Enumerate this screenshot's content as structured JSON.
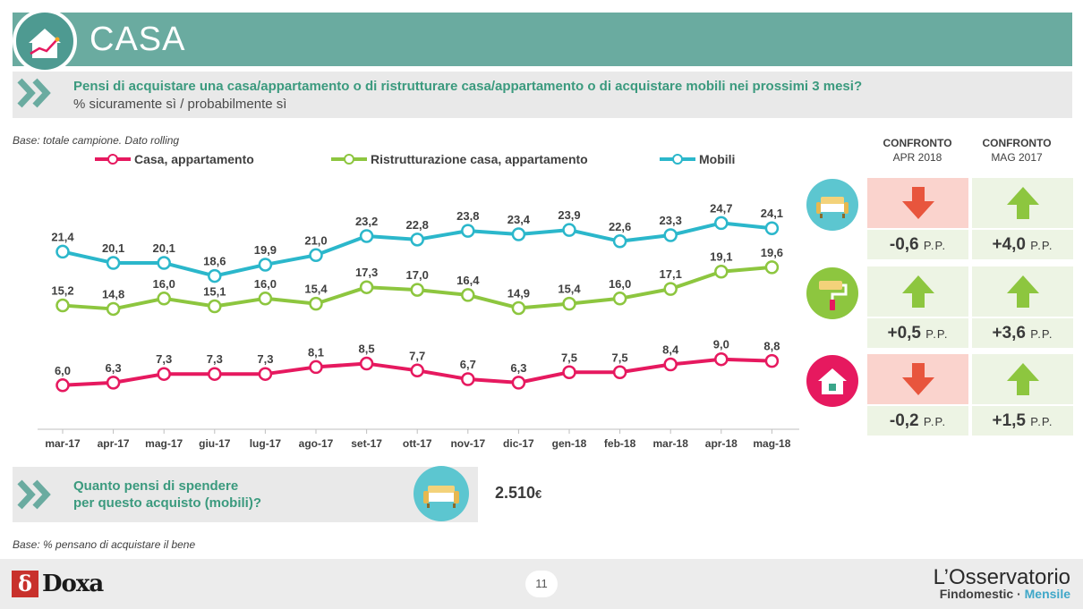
{
  "header": {
    "title": "CASA",
    "question": "Pensi di acquistare una casa/appartamento o di ristrutturare casa/appartamento o di acquistare mobili nei prossimi 3 mesi?",
    "subtitle": "% sicuramente sì / probabilmente sì"
  },
  "base_note": "Base: totale campione. Dato rolling",
  "chart_data": {
    "type": "line",
    "categories": [
      "mar-17",
      "apr-17",
      "mag-17",
      "giu-17",
      "lug-17",
      "ago-17",
      "set-17",
      "ott-17",
      "nov-17",
      "dic-17",
      "gen-18",
      "feb-18",
      "mar-18",
      "apr-18",
      "mag-18"
    ],
    "legend_placement": "top",
    "grid": false,
    "ylim": [
      0,
      27
    ],
    "series": [
      {
        "name": "Casa, appartamento",
        "color": "#e6195f",
        "values": [
          6.0,
          6.3,
          7.3,
          7.3,
          7.3,
          8.1,
          8.5,
          7.7,
          6.7,
          6.3,
          7.5,
          7.5,
          8.4,
          9.0,
          8.8
        ],
        "labels": [
          "6,0",
          "6,3",
          "7,3",
          "7,3",
          "7,3",
          "8,1",
          "8,5",
          "7,7",
          "6,7",
          "6,3",
          "7,5",
          "7,5",
          "8,4",
          "9,0",
          "8,8"
        ]
      },
      {
        "name": "Ristrutturazione casa, appartamento",
        "color": "#8dc63f",
        "values": [
          15.2,
          14.8,
          16.0,
          15.1,
          16.0,
          15.4,
          17.3,
          17.0,
          16.4,
          14.9,
          15.4,
          16.0,
          17.1,
          19.1,
          19.6
        ],
        "labels": [
          "15,2",
          "14,8",
          "16,0",
          "15,1",
          "16,0",
          "15,4",
          "17,3",
          "17,0",
          "16,4",
          "14,9",
          "15,4",
          "16,0",
          "17,1",
          "19,1",
          "19,6"
        ]
      },
      {
        "name": "Mobili",
        "color": "#2bb7cb",
        "values": [
          21.4,
          20.1,
          20.1,
          18.6,
          19.9,
          21.0,
          23.2,
          22.8,
          23.8,
          23.4,
          23.9,
          22.6,
          23.3,
          24.7,
          24.1
        ],
        "labels": [
          "21,4",
          "20,1",
          "20,1",
          "18,6",
          "19,9",
          "21,0",
          "23,2",
          "22,8",
          "23,8",
          "23,4",
          "23,9",
          "22,6",
          "23,3",
          "24,7",
          "24,1"
        ]
      }
    ]
  },
  "comparison": {
    "headers": [
      {
        "line1": "CONFRONTO",
        "line2": "APR 2018"
      },
      {
        "line1": "CONFRONTO",
        "line2": "MAG 2017"
      }
    ],
    "unit": "P.P.",
    "rows": [
      {
        "icon": "sofa-icon",
        "icon_color": "#5cc6d0",
        "apr": {
          "value": "-0,6",
          "direction": "down"
        },
        "mag": {
          "value": "+4,0",
          "direction": "up"
        }
      },
      {
        "icon": "paint-roller-icon",
        "icon_color": "#8dc63f",
        "apr": {
          "value": "+0,5",
          "direction": "up"
        },
        "mag": {
          "value": "+3,6",
          "direction": "up"
        }
      },
      {
        "icon": "house-icon",
        "icon_color": "#e6195f",
        "apr": {
          "value": "-0,2",
          "direction": "down"
        },
        "mag": {
          "value": "+1,5",
          "direction": "up"
        }
      }
    ]
  },
  "spending": {
    "question_line1": "Quanto pensi di spendere",
    "question_line2": "per questo acquisto (mobili)?",
    "amount": "2.510",
    "currency": "€"
  },
  "base_note2": "Base: % pensano di acquistare il bene",
  "footer": {
    "page_number": "11",
    "brand_left": "Doxa",
    "brand_left_mark": "δ",
    "brand_right_title": "L’Osservatorio",
    "brand_right_sub1": "Findomestic · ",
    "brand_right_sub2": "Mensile"
  }
}
